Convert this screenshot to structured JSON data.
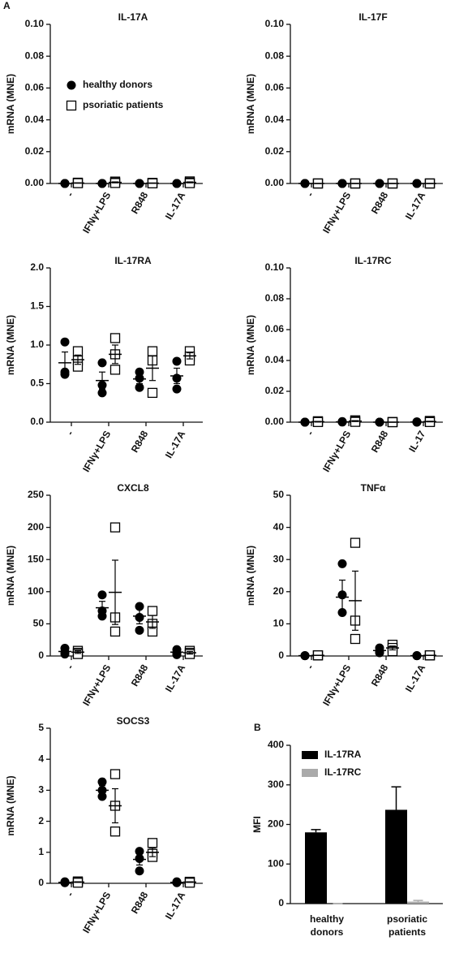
{
  "chart_data": [
    {
      "type": "dot",
      "panel_label": "A",
      "title": "IL-17A",
      "y_label": "mRNA (MNE)",
      "categories": [
        "-",
        "IFNγ+LPS",
        "R848",
        "IL-17A"
      ],
      "ylim": [
        0,
        0.1
      ],
      "yticks": [
        {
          "value": 0,
          "label": "0.00"
        },
        {
          "value": 0.02,
          "label": "0.02"
        },
        {
          "value": 0.04,
          "label": "0.04"
        },
        {
          "value": 0.06,
          "label": "0.06"
        },
        {
          "value": 0.08,
          "label": "0.08"
        },
        {
          "value": 0.1,
          "label": "0.10"
        }
      ],
      "legend": true,
      "series": [
        {
          "name": "healthy donors",
          "marker": "circle",
          "color": "#000000",
          "values": [
            [
              0,
              0,
              0
            ],
            [
              0,
              0,
              0
            ],
            [
              0,
              0,
              0
            ],
            [
              0,
              0,
              0
            ]
          ],
          "means": [
            0,
            0,
            0,
            0
          ],
          "sems": [
            0,
            0,
            0,
            0
          ]
        },
        {
          "name": "psoriatic patients",
          "marker": "square",
          "color": "#000000",
          "values": [
            [
              0.0005,
              0.0003,
              0.0002
            ],
            [
              0.0012,
              0.0006,
              0.0003
            ],
            [
              0.0004,
              0.0002,
              0.0001
            ],
            [
              0.0013,
              0.0006,
              0.0002
            ]
          ],
          "means": [
            0.0003,
            0.0007,
            0.0002,
            0.0007
          ],
          "sems": [
            0.0001,
            0.0003,
            0.0001,
            0.0003
          ]
        }
      ]
    },
    {
      "type": "dot",
      "title": "IL-17F",
      "y_label": "mRNA (MNE)",
      "categories": [
        "-",
        "IFNγ+LPS",
        "R848",
        "IL-17A"
      ],
      "ylim": [
        0,
        0.1
      ],
      "yticks": [
        {
          "value": 0,
          "label": "0.00"
        },
        {
          "value": 0.02,
          "label": "0.02"
        },
        {
          "value": 0.04,
          "label": "0.04"
        },
        {
          "value": 0.06,
          "label": "0.06"
        },
        {
          "value": 0.08,
          "label": "0.08"
        },
        {
          "value": 0.1,
          "label": "0.10"
        }
      ],
      "series": [
        {
          "marker": "circle",
          "color": "#000000",
          "values": [
            [
              0,
              0,
              0
            ],
            [
              0,
              0,
              0
            ],
            [
              0,
              0,
              0
            ],
            [
              0,
              0,
              0
            ]
          ],
          "means": [
            0,
            0,
            0,
            0
          ],
          "sems": [
            0,
            0,
            0,
            0
          ]
        },
        {
          "marker": "square",
          "color": "#000000",
          "values": [
            [
              0,
              0,
              0
            ],
            [
              0,
              0,
              0
            ],
            [
              0,
              0,
              0
            ],
            [
              0,
              0,
              0
            ]
          ],
          "means": [
            0,
            0,
            0,
            0
          ],
          "sems": [
            0,
            0,
            0,
            0
          ]
        }
      ]
    },
    {
      "type": "dot",
      "title": "IL-17RA",
      "y_label": "mRNA (MNE)",
      "categories": [
        "-",
        "IFNγ+LPS",
        "R848",
        "IL-17A"
      ],
      "ylim": [
        0,
        2
      ],
      "yticks": [
        {
          "value": 0,
          "label": "0.0"
        },
        {
          "value": 0.5,
          "label": "0.5"
        },
        {
          "value": 1,
          "label": "1.0"
        },
        {
          "value": 1.5,
          "label": "1.5"
        },
        {
          "value": 2,
          "label": "2.0"
        }
      ],
      "series": [
        {
          "marker": "circle",
          "color": "#000000",
          "values": [
            [
              1.04,
              0.65,
              0.62
            ],
            [
              0.77,
              0.48,
              0.38
            ],
            [
              0.65,
              0.57,
              0.45
            ],
            [
              0.79,
              0.57,
              0.43
            ]
          ],
          "means": [
            0.77,
            0.54,
            0.56,
            0.6
          ],
          "sems": [
            0.14,
            0.11,
            0.06,
            0.1
          ]
        },
        {
          "marker": "square",
          "color": "#000000",
          "values": [
            [
              0.92,
              0.8,
              0.72
            ],
            [
              1.09,
              0.88,
              0.68
            ],
            [
              0.92,
              0.8,
              0.38
            ],
            [
              0.92,
              0.85,
              0.8
            ]
          ],
          "means": [
            0.81,
            0.88,
            0.7,
            0.86
          ],
          "sems": [
            0.06,
            0.12,
            0.16,
            0.04
          ]
        }
      ]
    },
    {
      "type": "dot",
      "title": "IL-17RC",
      "y_label": "mRNA (MNE)",
      "categories": [
        "-",
        "IFNγ+LPS",
        "R848",
        "IL-17"
      ],
      "ylim": [
        0,
        0.1
      ],
      "yticks": [
        {
          "value": 0,
          "label": "0.00"
        },
        {
          "value": 0.02,
          "label": "0.02"
        },
        {
          "value": 0.04,
          "label": "0.04"
        },
        {
          "value": 0.06,
          "label": "0.06"
        },
        {
          "value": 0.08,
          "label": "0.08"
        },
        {
          "value": 0.1,
          "label": "0.10"
        }
      ],
      "series": [
        {
          "marker": "circle",
          "color": "#000000",
          "values": [
            [
              0,
              0,
              0
            ],
            [
              0.0004,
              0.0002,
              0.0001
            ],
            [
              0,
              0,
              0
            ],
            [
              0.0002,
              0.0001,
              0
            ]
          ],
          "means": [
            0,
            0.0002,
            0,
            0.0001
          ],
          "sems": [
            0,
            0.0001,
            0,
            0.0001
          ]
        },
        {
          "marker": "square",
          "color": "#000000",
          "values": [
            [
              0.0006,
              0.0003,
              0.0001
            ],
            [
              0.0012,
              0.0006,
              0.0002
            ],
            [
              0.0001,
              0,
              0
            ],
            [
              0.0008,
              0.0004,
              0.0001
            ]
          ],
          "means": [
            0.0003,
            0.0007,
            0,
            0.0004
          ],
          "sems": [
            0.0002,
            0.0003,
            0,
            0.0002
          ]
        }
      ]
    },
    {
      "type": "dot",
      "title": "CXCL8",
      "y_label": "mRNA (MNE)",
      "categories": [
        "-",
        "IFNγ+LPS",
        "R848",
        "IL-17A"
      ],
      "ylim": [
        0,
        250
      ],
      "yticks": [
        0,
        50,
        100,
        150,
        200,
        250
      ],
      "series": [
        {
          "marker": "circle",
          "color": "#000000",
          "values": [
            [
              12,
              6,
              3
            ],
            [
              95,
              70,
              62
            ],
            [
              77,
              60,
              40
            ],
            [
              10,
              5,
              2
            ]
          ],
          "means": [
            7,
            75,
            62,
            6
          ],
          "sems": [
            3,
            10,
            12,
            3
          ]
        },
        {
          "marker": "square",
          "color": "#000000",
          "values": [
            [
              8,
              5,
              3
            ],
            [
              200,
              60,
              38
            ],
            [
              70,
              50,
              38
            ],
            [
              8,
              5,
              3
            ]
          ],
          "means": [
            6,
            99,
            53,
            5
          ],
          "sems": [
            2,
            50,
            10,
            2
          ]
        }
      ]
    },
    {
      "type": "dot",
      "title": "TNFα",
      "y_label": "mRNA (MNE)",
      "categories": [
        "-",
        "IFNγ+LPS",
        "R848",
        "IL-17A"
      ],
      "ylim": [
        0,
        50
      ],
      "yticks": [
        0,
        10,
        20,
        30,
        40,
        50
      ],
      "series": [
        {
          "marker": "circle",
          "color": "#000000",
          "values": [
            [
              0.1,
              0.1,
              0.1
            ],
            [
              28.7,
              19,
              13.5
            ],
            [
              2.5,
              1.5,
              1
            ],
            [
              0.1,
              0.1,
              0.1
            ]
          ],
          "means": [
            0.1,
            18.3,
            1.7,
            0.1
          ],
          "sems": [
            0,
            5.3,
            0.5,
            0
          ]
        },
        {
          "marker": "square",
          "color": "#000000",
          "values": [
            [
              0.2,
              0.2,
              0.2
            ],
            [
              35.2,
              11,
              5.3
            ],
            [
              3.5,
              2.5,
              1.5
            ],
            [
              0.2,
              0.2,
              0.2
            ]
          ],
          "means": [
            0.2,
            17.2,
            2.5,
            0.2
          ],
          "sems": [
            0,
            9.2,
            0.6,
            0
          ]
        }
      ]
    },
    {
      "type": "dot",
      "title": "SOCS3",
      "y_label": "mRNA (MNE)",
      "categories": [
        "-",
        "IFNγ+LPS",
        "R848",
        "IL-17A"
      ],
      "ylim": [
        0,
        5
      ],
      "yticks": [
        0,
        1,
        2,
        3,
        4,
        5
      ],
      "series": [
        {
          "marker": "circle",
          "color": "#000000",
          "values": [
            [
              0.05,
              0.03,
              0.02
            ],
            [
              3.27,
              3,
              2.8
            ],
            [
              1.03,
              0.8,
              0.4
            ],
            [
              0.05,
              0.03,
              0.02
            ]
          ],
          "means": [
            0.03,
            3,
            0.77,
            0.03
          ],
          "sems": [
            0.01,
            0.15,
            0.18,
            0.01
          ]
        },
        {
          "marker": "square",
          "color": "#000000",
          "values": [
            [
              0.06,
              0.04,
              0.02
            ],
            [
              3.52,
              2.5,
              1.67
            ],
            [
              1.3,
              0.95,
              0.85
            ],
            [
              0.05,
              0.04,
              0.02
            ]
          ],
          "means": [
            0.04,
            2.5,
            1,
            0.04
          ],
          "sems": [
            0.01,
            0.55,
            0.14,
            0.01
          ]
        }
      ]
    },
    {
      "type": "bar",
      "panel_label": "B",
      "y_label": "MFI",
      "categories": [
        "healthy donors",
        "psoriatic patients"
      ],
      "ylim": [
        0,
        400
      ],
      "yticks": [
        0,
        100,
        200,
        300,
        400
      ],
      "series": [
        {
          "name": "IL-17RA",
          "color": "#000000",
          "values": [
            180,
            237
          ],
          "errors": [
            7,
            58
          ]
        },
        {
          "name": "IL-17RC",
          "color": "#aaaaaa",
          "values": [
            0,
            5
          ],
          "errors": [
            0,
            3
          ]
        }
      ]
    }
  ]
}
